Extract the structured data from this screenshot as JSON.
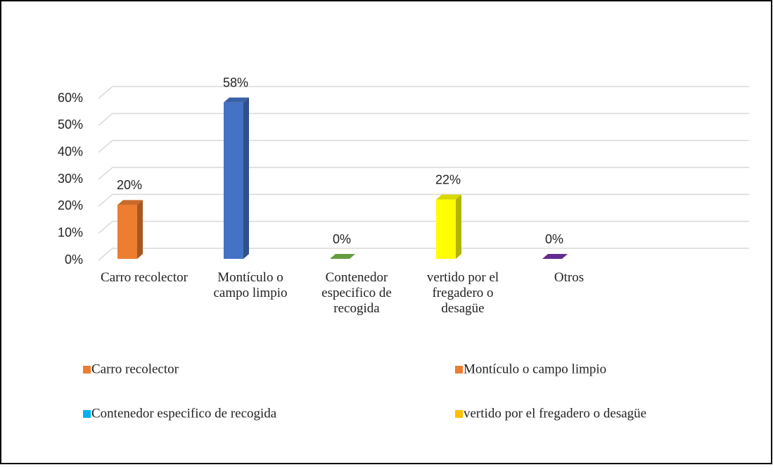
{
  "chart_data": {
    "type": "bar3d",
    "categories": [
      "Carro recolector",
      "Montículo o campo limpio",
      "Contenedor especifico de recogida",
      "vertido por el fregadero o desagüe",
      "Otros"
    ],
    "values": [
      20,
      58,
      0,
      22,
      0
    ],
    "value_labels": [
      "20%",
      "58%",
      "0%",
      "22%",
      "0%"
    ],
    "colors": [
      "#ed7d31",
      "#4472c4",
      "#70ad47",
      "#ffff00",
      "#7030a0"
    ],
    "ylim": [
      0,
      60
    ],
    "yticks": [
      {
        "value": 0,
        "label": "0%"
      },
      {
        "value": 10,
        "label": "10%"
      },
      {
        "value": 20,
        "label": "20%"
      },
      {
        "value": 30,
        "label": "30%"
      },
      {
        "value": 40,
        "label": "40%"
      },
      {
        "value": 50,
        "label": "50%"
      },
      {
        "value": 60,
        "label": "60%"
      }
    ],
    "grid": true,
    "legend": [
      {
        "name": "Carro recolector",
        "color": "#ed7d31"
      },
      {
        "name": "Montículo o campo limpio",
        "color": "#ed7d31"
      },
      {
        "name": "Contenedor especifico de recogida",
        "color": "#00b0f0"
      },
      {
        "name": "vertido por el fregadero o desagüe",
        "color": "#ffc000"
      }
    ]
  }
}
